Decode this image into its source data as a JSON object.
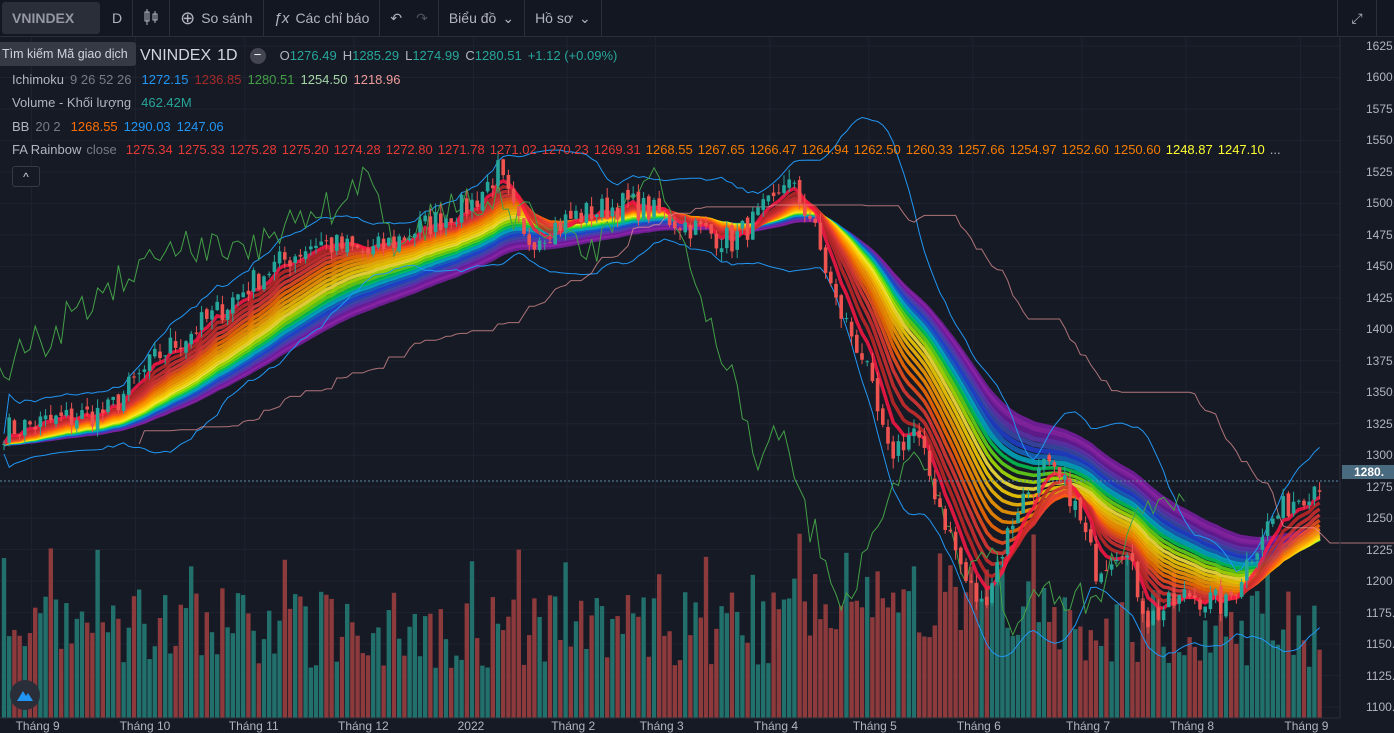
{
  "toolbar": {
    "symbol": "VNINDEX",
    "interval": "D",
    "compare": "So sánh",
    "indicators": "Các chỉ báo",
    "chart": "Biểu đồ",
    "profile": "Hồ sơ"
  },
  "tooltip": "Tìm kiếm Mã giao dịch",
  "legend": {
    "symbol": "VNINDEX",
    "interval": "1D",
    "ohlc": {
      "o_label": "O",
      "o": "1276.49",
      "h_label": "H",
      "h": "1285.29",
      "l_label": "L",
      "l": "1274.99",
      "c_label": "C",
      "c": "1280.51",
      "change": "+1.12 (+0.09%)"
    },
    "ichimoku": {
      "label": "Ichimoku",
      "params": "9 26 52 26",
      "values": [
        "1272.15",
        "1236.85",
        "1280.51",
        "1254.50",
        "1218.96"
      ]
    },
    "volume": {
      "label": "Volume - Khối lượng",
      "value": "462.42M"
    },
    "bb": {
      "label": "BB",
      "params": "20 2",
      "values": [
        "1268.55",
        "1290.03",
        "1247.06"
      ]
    },
    "rainbow": {
      "label": "FA Rainbow",
      "params": "close",
      "values": [
        "1275.34",
        "1275.33",
        "1275.28",
        "1275.20",
        "1274.28",
        "1272.80",
        "1271.78",
        "1271.02",
        "1270.23",
        "1269.31",
        "1268.55",
        "1267.65",
        "1266.47",
        "1264.94",
        "1262.50",
        "1260.33",
        "1257.66",
        "1254.97",
        "1252.60",
        "1250.60",
        "1248.87",
        "1247.10"
      ],
      "more": "..."
    }
  },
  "colors": {
    "up": "#26a69a",
    "down": "#ef5350",
    "vol_up": "#22706b",
    "vol_down": "#8c3a3c",
    "bb": "#2196f3",
    "lagging": "#43a047"
  },
  "last_price_label": "1280.",
  "chart_data": {
    "type": "candlestick",
    "y_ticks": [
      "1625.",
      "1600.",
      "1575.",
      "1550.",
      "1525.",
      "1500.",
      "1475.",
      "1450.",
      "1425.",
      "1400.",
      "1375.",
      "1350.",
      "1325.",
      "1300.",
      "1275.",
      "1250.",
      "1225.",
      "1200.",
      "1175.",
      "1150.",
      "1125.",
      "1100."
    ],
    "ylim": [
      1100,
      1625
    ],
    "x_ticks": [
      "Tháng 9",
      "Tháng 10",
      "Tháng 11",
      "Tháng 12",
      "2022",
      "Tháng 2",
      "Tháng 3",
      "Tháng 4",
      "Tháng 5",
      "Tháng 6",
      "Tháng 7",
      "Tháng 8",
      "Tháng 9"
    ],
    "x_tick_bars": [
      3,
      23,
      44,
      65,
      88,
      106,
      123,
      145,
      164,
      184,
      205,
      225,
      247
    ],
    "bars": 254,
    "close_keypoints": [
      [
        0,
        1320
      ],
      [
        20,
        1335
      ],
      [
        30,
        1380
      ],
      [
        40,
        1410
      ],
      [
        50,
        1445
      ],
      [
        60,
        1470
      ],
      [
        70,
        1460
      ],
      [
        80,
        1480
      ],
      [
        90,
        1500
      ],
      [
        95,
        1525
      ],
      [
        100,
        1470
      ],
      [
        110,
        1490
      ],
      [
        120,
        1500
      ],
      [
        130,
        1485
      ],
      [
        140,
        1470
      ],
      [
        148,
        1500
      ],
      [
        150,
        1520
      ],
      [
        155,
        1490
      ],
      [
        160,
        1420
      ],
      [
        165,
        1380
      ],
      [
        170,
        1300
      ],
      [
        175,
        1320
      ],
      [
        180,
        1260
      ],
      [
        185,
        1200
      ],
      [
        188,
        1180
      ],
      [
        195,
        1260
      ],
      [
        200,
        1290
      ],
      [
        205,
        1270
      ],
      [
        210,
        1210
      ],
      [
        215,
        1230
      ],
      [
        220,
        1170
      ],
      [
        228,
        1190
      ],
      [
        235,
        1180
      ],
      [
        242,
        1240
      ],
      [
        248,
        1265
      ],
      [
        253,
        1280
      ]
    ]
  }
}
